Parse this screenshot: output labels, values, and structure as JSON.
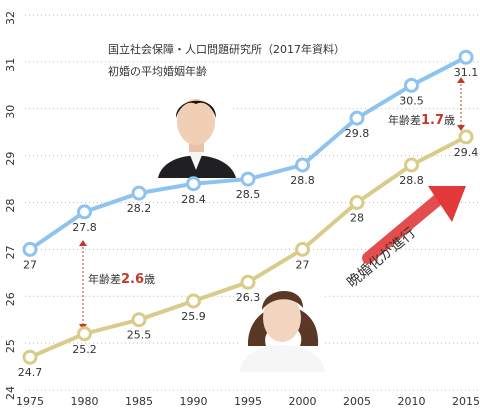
{
  "chart_data": {
    "type": "line",
    "title": "国立社会保障・人口問題研究所（2017年資料）",
    "subtitle": "初婚の平均婚姻年齢",
    "x": [
      "1975",
      "1980",
      "1985",
      "1990",
      "1995",
      "2000",
      "2005",
      "2010",
      "2015"
    ],
    "ylim": [
      24,
      32
    ],
    "yticks": [
      "24",
      "25",
      "26",
      "27",
      "28",
      "29",
      "30",
      "31",
      "32"
    ],
    "grid": "horizontal-dotted",
    "series": [
      {
        "values": [
          27.0,
          27.8,
          28.2,
          28.4,
          28.5,
          28.8,
          29.8,
          30.5,
          31.1
        ],
        "labels": [
          "27",
          "27.8",
          "28.2",
          "28.4",
          "28.5",
          "28.8",
          "29.8",
          "30.5",
          "31.1"
        ],
        "color": "#8ec3f0"
      },
      {
        "values": [
          24.7,
          25.2,
          25.5,
          25.9,
          26.3,
          27.0,
          28.0,
          28.8,
          29.4
        ],
        "labels": [
          "24.7",
          "25.2",
          "25.5",
          "25.9",
          "26.3",
          "27",
          "28",
          "28.8",
          "29.4"
        ],
        "color": "#d9cc8a"
      }
    ],
    "annotations": {
      "gap_1980": {
        "prefix": "年齢差",
        "value": "2.6",
        "suffix": "歳"
      },
      "gap_2015": {
        "prefix": "年齢差",
        "value": "1.7",
        "suffix": "歳"
      },
      "trend": "晩婚化が進行"
    }
  },
  "colors": {
    "accent_red": "#c0392b",
    "arrow_red": "#e23a3a",
    "grid": "#bbbbbb"
  }
}
